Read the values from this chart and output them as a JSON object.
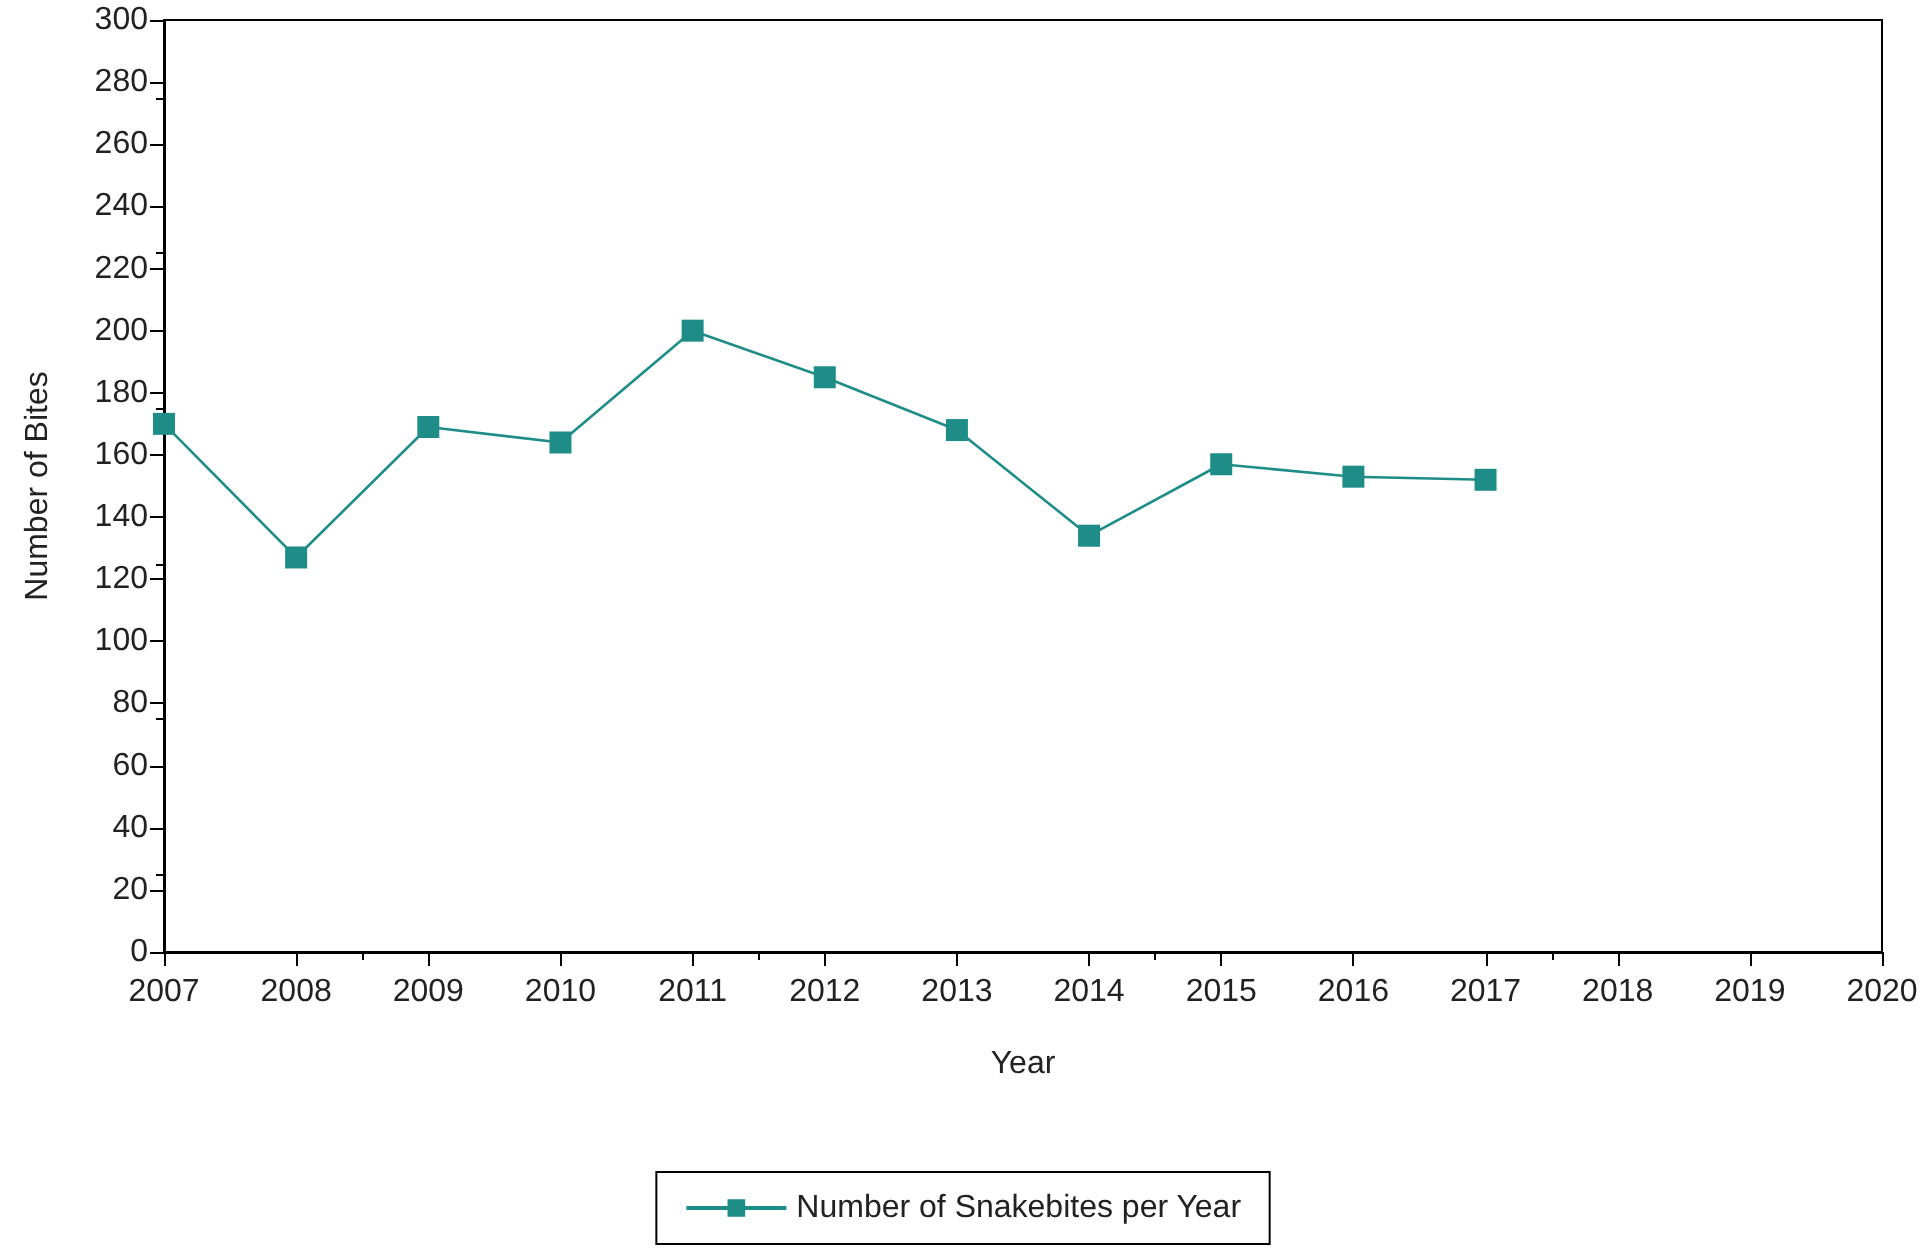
{
  "chart_data": {
    "type": "line",
    "xlabel": "Year",
    "ylabel": "Number of Bites",
    "x": [
      2007,
      2008,
      2009,
      2010,
      2011,
      2012,
      2013,
      2014,
      2015,
      2016,
      2017
    ],
    "series": [
      {
        "name": "Number of Snakebites per Year",
        "color": "#1e8c87",
        "values": [
          170,
          127,
          169,
          164,
          200,
          185,
          168,
          134,
          157,
          153,
          152
        ]
      }
    ],
    "xlim": [
      2007,
      2020
    ],
    "xticks": [
      2007,
      2008,
      2009,
      2010,
      2011,
      2012,
      2013,
      2014,
      2015,
      2016,
      2017,
      2018,
      2019,
      2020
    ],
    "ylim": [
      0,
      300
    ],
    "yticks": [
      0,
      20,
      40,
      60,
      80,
      100,
      120,
      140,
      160,
      180,
      200,
      220,
      240,
      260,
      280,
      300
    ],
    "grid": false,
    "legend": "bottom",
    "marker": "square",
    "line_style": "solid"
  }
}
